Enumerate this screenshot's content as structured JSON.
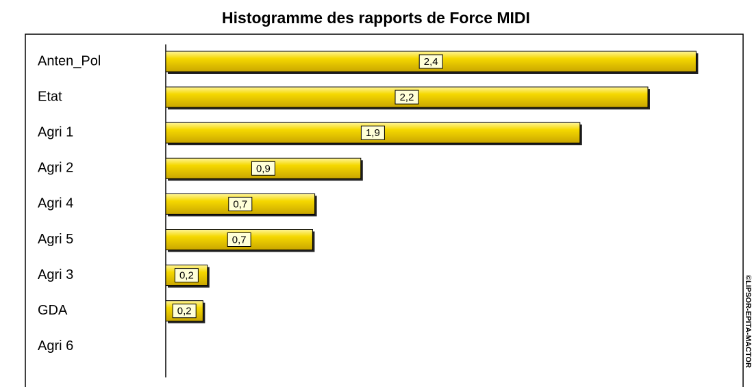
{
  "chart_data": {
    "type": "bar",
    "orientation": "horizontal",
    "title": "Histogramme des rapports de Force MIDI",
    "watermark": "©LIPSOR-EPITA-MACTOR",
    "categories": [
      "Anten_Pol",
      "Etat",
      "Agri 1",
      "Agri 2",
      "Agri 4",
      "Agri 5",
      "Agri 3",
      "GDA",
      "Agri 6"
    ],
    "values": [
      2.42,
      2.2,
      1.89,
      0.89,
      0.68,
      0.67,
      0.19,
      0.17,
      0
    ],
    "value_labels": [
      "2,4",
      "2,2",
      "1,9",
      "0,9",
      "0,7",
      "0,7",
      "0,2",
      "0,2",
      null
    ],
    "color": "#f0d000",
    "xlim": [
      0,
      2.6
    ]
  }
}
